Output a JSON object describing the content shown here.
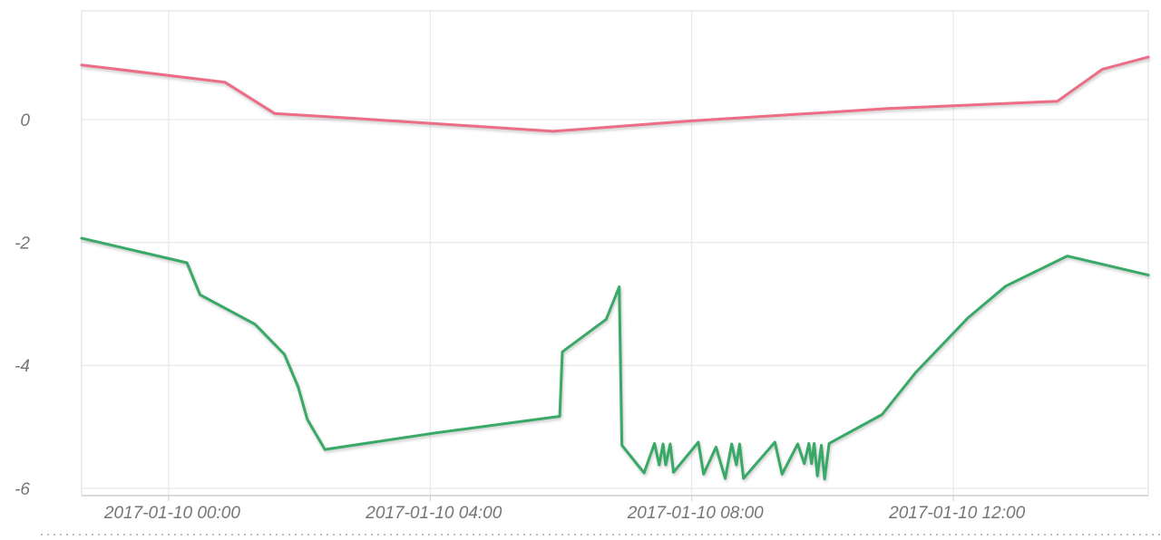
{
  "panel": {
    "background": "#ffffff",
    "has_title": false,
    "has_legend": false
  },
  "colors": {
    "grid": "#e4e4e4",
    "axis_label": "#757575",
    "series_pink": "#ec6d85",
    "series_green": "#38a967",
    "divider_dots": "#bdbdbd"
  },
  "chart_data": {
    "type": "line",
    "title": "",
    "xlabel": "",
    "ylabel": "",
    "legend_position": "none",
    "grid": true,
    "x_axis": {
      "kind": "datetime",
      "hours_relative_to": "2017-01-10 00:00",
      "range_hours": [
        -1.33,
        14.98
      ],
      "ticks": [
        {
          "t": 0,
          "label": "2017-01-10 00:00"
        },
        {
          "t": 4,
          "label": "2017-01-10 04:00"
        },
        {
          "t": 8,
          "label": "2017-01-10 08:00"
        },
        {
          "t": 12,
          "label": "2017-01-10 12:00"
        }
      ]
    },
    "y_axis": {
      "range": [
        -6.12,
        1.77
      ],
      "ticks": [
        {
          "v": 0,
          "label": "0"
        },
        {
          "v": -2,
          "label": "-2"
        },
        {
          "v": -4,
          "label": "-4"
        },
        {
          "v": -6,
          "label": "-6"
        }
      ]
    },
    "series": [
      {
        "id": "pink-line",
        "color": "#ec6d85",
        "points": [
          [
            -1.33,
            0.89
          ],
          [
            0.86,
            0.61
          ],
          [
            1.62,
            0.1
          ],
          [
            2.7,
            0.03
          ],
          [
            5.88,
            -0.19
          ],
          [
            8.0,
            -0.02
          ],
          [
            11.0,
            0.18
          ],
          [
            13.59,
            0.3
          ],
          [
            14.28,
            0.82
          ],
          [
            14.98,
            1.02
          ]
        ]
      },
      {
        "id": "green-line",
        "color": "#38a967",
        "points": [
          [
            -1.33,
            -1.93
          ],
          [
            0.28,
            -2.33
          ],
          [
            0.48,
            -2.85
          ],
          [
            1.32,
            -3.33
          ],
          [
            1.77,
            -3.82
          ],
          [
            1.98,
            -4.35
          ],
          [
            2.12,
            -4.88
          ],
          [
            2.39,
            -5.37
          ],
          [
            4.08,
            -5.1
          ],
          [
            5.98,
            -4.83
          ],
          [
            6.02,
            -3.78
          ],
          [
            6.69,
            -3.25
          ],
          [
            6.89,
            -2.72
          ],
          [
            6.93,
            -5.3
          ],
          [
            7.27,
            -5.75
          ],
          [
            7.43,
            -5.27
          ],
          [
            7.5,
            -5.62
          ],
          [
            7.56,
            -5.28
          ],
          [
            7.6,
            -5.62
          ],
          [
            7.67,
            -5.28
          ],
          [
            7.72,
            -5.74
          ],
          [
            8.1,
            -5.25
          ],
          [
            8.18,
            -5.77
          ],
          [
            8.37,
            -5.33
          ],
          [
            8.51,
            -5.84
          ],
          [
            8.61,
            -5.28
          ],
          [
            8.68,
            -5.62
          ],
          [
            8.73,
            -5.28
          ],
          [
            8.79,
            -5.84
          ],
          [
            9.27,
            -5.25
          ],
          [
            9.38,
            -5.77
          ],
          [
            9.62,
            -5.28
          ],
          [
            9.72,
            -5.6
          ],
          [
            9.79,
            -5.27
          ],
          [
            9.83,
            -5.6
          ],
          [
            9.87,
            -5.27
          ],
          [
            9.92,
            -5.8
          ],
          [
            9.98,
            -5.3
          ],
          [
            10.03,
            -5.85
          ],
          [
            10.1,
            -5.27
          ],
          [
            10.91,
            -4.8
          ],
          [
            11.42,
            -4.12
          ],
          [
            12.22,
            -3.23
          ],
          [
            12.8,
            -2.71
          ],
          [
            13.74,
            -2.22
          ],
          [
            14.98,
            -2.53
          ]
        ]
      }
    ]
  }
}
